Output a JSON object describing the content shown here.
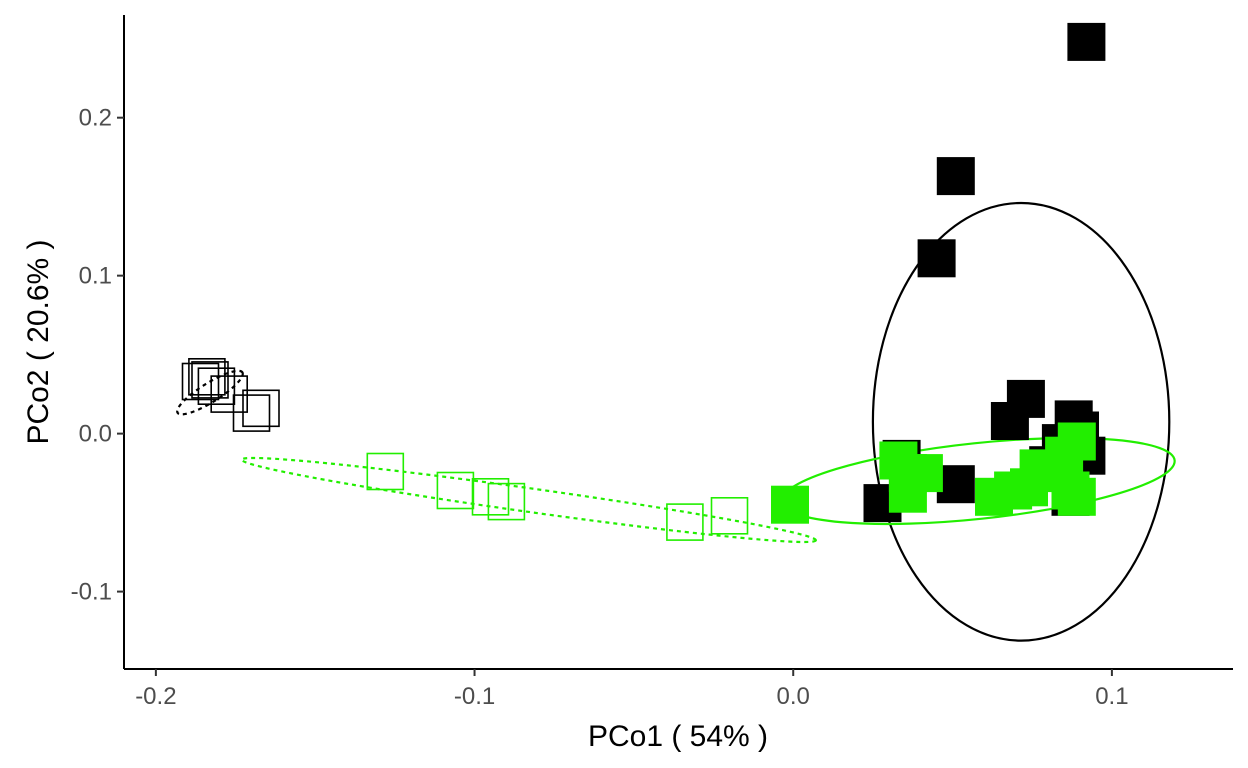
{
  "chart_data": {
    "type": "scatter",
    "title": "",
    "xlabel": "PCo1 ( 54% )",
    "ylabel": "PCo2 ( 20.6% )",
    "xlim": [
      -0.21,
      0.138
    ],
    "ylim": [
      -0.149,
      0.265
    ],
    "x_ticks": [
      -0.2,
      -0.1,
      0.0,
      0.1
    ],
    "x_tick_labels": [
      "-0.2",
      "-0.1",
      "0.0",
      "0.1"
    ],
    "y_ticks": [
      -0.1,
      0.0,
      0.1,
      0.2
    ],
    "y_tick_labels": [
      "-0.1",
      "0.0",
      "0.1",
      "0.2"
    ],
    "grid": false,
    "legend": "none",
    "series": [
      {
        "color": "#000000",
        "marker": "square-filled",
        "points": [
          [
            0.092,
            0.248
          ],
          [
            0.051,
            0.163
          ],
          [
            0.045,
            0.111
          ],
          [
            0.073,
            0.022
          ],
          [
            0.068,
            0.008
          ],
          [
            0.088,
            0.009
          ],
          [
            0.09,
            0.002
          ],
          [
            0.092,
            -0.014
          ],
          [
            0.084,
            -0.006
          ],
          [
            0.08,
            -0.02
          ],
          [
            0.051,
            -0.032
          ],
          [
            0.028,
            -0.044
          ],
          [
            0.087,
            -0.04
          ],
          [
            0.034,
            -0.016
          ]
        ],
        "ellipse": {
          "center": [
            0.0715,
            0.0075
          ],
          "radii": [
            0.0465,
            0.1385
          ],
          "angle": 0,
          "style": "solid"
        }
      },
      {
        "color": "#000000",
        "marker": "square-open",
        "points": [
          [
            -0.186,
            0.033
          ],
          [
            -0.184,
            0.036
          ],
          [
            -0.181,
            0.03
          ],
          [
            -0.177,
            0.025
          ],
          [
            -0.167,
            0.016
          ],
          [
            -0.17,
            0.013
          ],
          [
            -0.183,
            0.034
          ]
        ],
        "ellipse": {
          "center": [
            -0.183,
            0.026
          ],
          "radii": [
            0.012,
            0.006
          ],
          "angle": -32,
          "style": "dotted"
        }
      },
      {
        "color": "#22ee00",
        "marker": "square-filled",
        "points": [
          [
            -0.001,
            -0.045
          ],
          [
            0.033,
            -0.017
          ],
          [
            0.036,
            -0.025
          ],
          [
            0.041,
            -0.025
          ],
          [
            0.036,
            -0.038
          ],
          [
            0.063,
            -0.04
          ],
          [
            0.069,
            -0.036
          ],
          [
            0.074,
            -0.034
          ],
          [
            0.077,
            -0.022
          ],
          [
            0.08,
            -0.025
          ],
          [
            0.085,
            -0.014
          ],
          [
            0.089,
            -0.005
          ],
          [
            0.087,
            -0.036
          ],
          [
            0.089,
            -0.04
          ]
        ],
        "ellipse": {
          "center": [
            0.058,
            -0.03
          ],
          "radii": [
            0.062,
            0.024
          ],
          "angle": -6,
          "style": "solid"
        }
      },
      {
        "color": "#22ee00",
        "marker": "square-open",
        "points": [
          [
            -0.128,
            -0.024
          ],
          [
            -0.106,
            -0.036
          ],
          [
            -0.095,
            -0.04
          ],
          [
            -0.09,
            -0.043
          ],
          [
            -0.034,
            -0.056
          ],
          [
            -0.02,
            -0.052
          ]
        ],
        "ellipse": {
          "center": [
            -0.083,
            -0.042
          ],
          "radii": [
            0.091,
            0.0075
          ],
          "angle": 8,
          "style": "dotted"
        }
      }
    ]
  }
}
